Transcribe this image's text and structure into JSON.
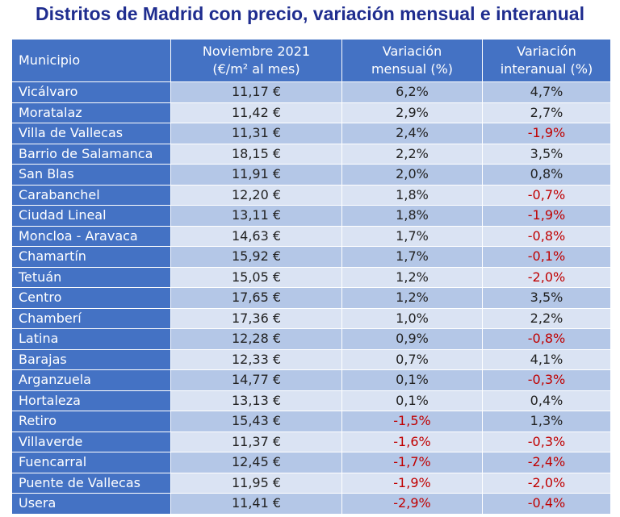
{
  "title": "Distritos de Madrid con precio, variación mensual e interanual",
  "table": {
    "headers": {
      "municipio": "Municipio",
      "price_line1": "Noviembre 2021",
      "price_line2": "(€/m² al mes)",
      "monthly_line1": "Variación",
      "monthly_line2": "mensual (%)",
      "yearly_line1": "Variación",
      "yearly_line2": "interanual (%)"
    },
    "rows": [
      {
        "name": "Vicálvaro",
        "price": "11,17 €",
        "monthly": "6,2%",
        "yearly": "4,7%"
      },
      {
        "name": "Moratalaz",
        "price": "11,42 €",
        "monthly": "2,9%",
        "yearly": "2,7%"
      },
      {
        "name": "Villa de Vallecas",
        "price": "11,31 €",
        "monthly": "2,4%",
        "yearly": "-1,9%"
      },
      {
        "name": "Barrio de Salamanca",
        "price": "18,15 €",
        "monthly": "2,2%",
        "yearly": "3,5%"
      },
      {
        "name": "San Blas",
        "price": "11,91 €",
        "monthly": "2,0%",
        "yearly": "0,8%"
      },
      {
        "name": "Carabanchel",
        "price": "12,20 €",
        "monthly": "1,8%",
        "yearly": "-0,7%"
      },
      {
        "name": "Ciudad Lineal",
        "price": "13,11 €",
        "monthly": "1,8%",
        "yearly": "-1,9%"
      },
      {
        "name": "Moncloa - Aravaca",
        "price": "14,63 €",
        "monthly": "1,7%",
        "yearly": "-0,8%"
      },
      {
        "name": "Chamartín",
        "price": "15,92 €",
        "monthly": "1,7%",
        "yearly": "-0,1%"
      },
      {
        "name": "Tetuán",
        "price": "15,05 €",
        "monthly": "1,2%",
        "yearly": "-2,0%"
      },
      {
        "name": "Centro",
        "price": "17,65 €",
        "monthly": "1,2%",
        "yearly": "3,5%"
      },
      {
        "name": "Chamberí",
        "price": "17,36 €",
        "monthly": "1,0%",
        "yearly": "2,2%"
      },
      {
        "name": "Latina",
        "price": "12,28 €",
        "monthly": "0,9%",
        "yearly": "-0,8%"
      },
      {
        "name": "Barajas",
        "price": "12,33 €",
        "monthly": "0,7%",
        "yearly": "4,1%"
      },
      {
        "name": "Arganzuela",
        "price": "14,77 €",
        "monthly": "0,1%",
        "yearly": "-0,3%"
      },
      {
        "name": "Hortaleza",
        "price": "13,13 €",
        "monthly": "0,1%",
        "yearly": "0,4%"
      },
      {
        "name": "Retiro",
        "price": "15,43 €",
        "monthly": "-1,5%",
        "yearly": "1,3%"
      },
      {
        "name": "Villaverde",
        "price": "11,37 €",
        "monthly": "-1,6%",
        "yearly": "-0,3%"
      },
      {
        "name": "Fuencarral",
        "price": "12,45 €",
        "monthly": "-1,7%",
        "yearly": "-2,4%"
      },
      {
        "name": "Puente de Vallecas",
        "price": "11,95 €",
        "monthly": "-1,9%",
        "yearly": "-2,0%"
      },
      {
        "name": "Usera",
        "price": "11,41 €",
        "monthly": "-2,9%",
        "yearly": "-0,4%"
      }
    ]
  },
  "colors": {
    "title": "#1f2d8f",
    "header_bg": "#4472c4",
    "row_dark": "#b4c7e7",
    "row_light": "#dae3f3",
    "negative": "#c00000"
  }
}
